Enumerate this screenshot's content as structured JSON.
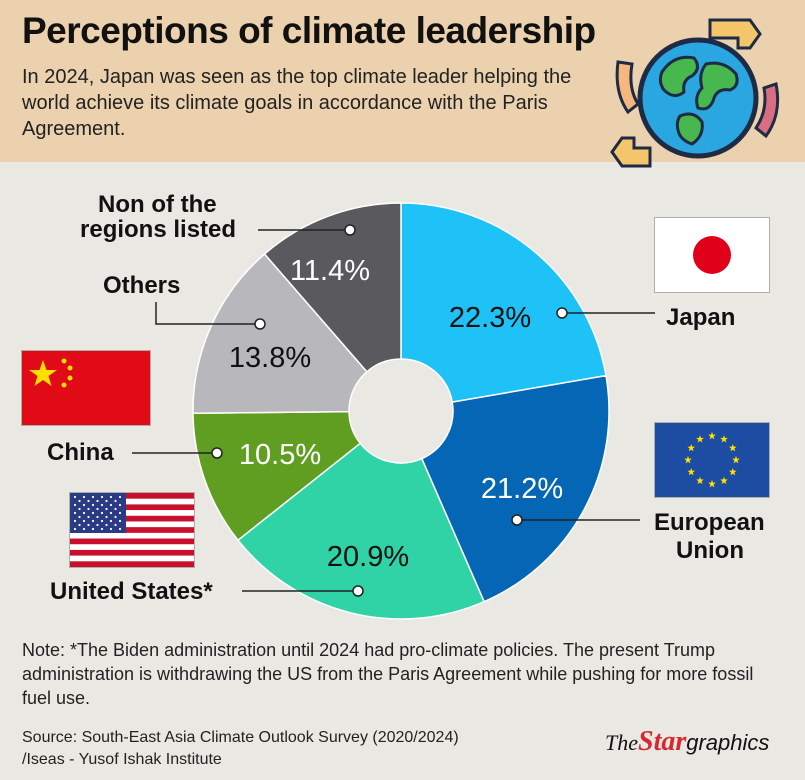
{
  "header": {
    "title": "Perceptions of climate leadership",
    "subtitle": "In 2024, Japan was seen as the top climate leader helping the world achieve its climate goals in accordance with the Paris Agreement."
  },
  "chart_data": {
    "type": "pie",
    "variant": "donut",
    "unit": "%",
    "slices": [
      {
        "label": "Japan",
        "value": 22.3,
        "value_label": "22.3%",
        "color": "#1fc2f7"
      },
      {
        "label": "European Union",
        "value": 21.2,
        "value_label": "21.2%",
        "color": "#0466b4"
      },
      {
        "label": "United States*",
        "value": 20.9,
        "value_label": "20.9%",
        "color": "#2fd3a5"
      },
      {
        "label": "China",
        "value": 10.5,
        "value_label": "10.5%",
        "color": "#5f9e20"
      },
      {
        "label": "Others",
        "value": 13.8,
        "value_label": "13.8%",
        "color": "#b7b7bc"
      },
      {
        "label": "Non of the regions listed",
        "value": 11.4,
        "value_label": "11.4%",
        "color": "#5a5a5e"
      }
    ]
  },
  "labels": {
    "japan": "Japan",
    "eu_line1": "European",
    "eu_line2": "Union",
    "us": "United States*",
    "china": "China",
    "others": "Others",
    "non_line1": "Non of the",
    "non_line2": "regions listed"
  },
  "footer": {
    "note": "Note: *The Biden administration until 2024 had pro-climate policies. The present Trump administration is withdrawing the US from the Paris Agreement while pushing for more fossil fuel use.",
    "source": "Source: South-East Asia Climate Outlook Survey (2020/2024) /Iseas - Yusof Ishak Institute",
    "brand_the": "The",
    "brand_star": "Star",
    "brand_graphics": "graphics"
  },
  "icons": {
    "globe": "globe-recycle-icon"
  }
}
